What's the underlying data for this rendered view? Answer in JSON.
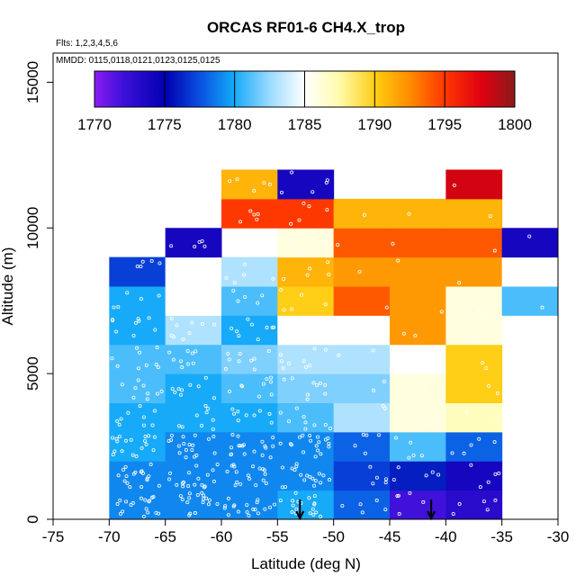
{
  "chart_data": {
    "type": "heatmap",
    "title": "ORCAS RF01-6 CH4.X_trop",
    "subtitle_flights": "Flts: 1,2,3,4,5,6",
    "subtitle_dates": "MMDD: 0115,0118,0121,0123,0125,0125",
    "xlabel": "Latitude (deg N)",
    "ylabel": "Altitude (m)",
    "xlim": [
      -75,
      -30
    ],
    "ylim": [
      0,
      16000
    ],
    "xticks": [
      -75,
      -70,
      -65,
      -60,
      -55,
      -50,
      -45,
      -40,
      -35,
      -30
    ],
    "xtick_labels": [
      "-75",
      "-70",
      "-65",
      "-60",
      "-55",
      "-50",
      "-45",
      "-40",
      "-35",
      "-30"
    ],
    "yticks": [
      0,
      5000,
      10000,
      15000
    ],
    "ytick_labels": [
      "0",
      "5000",
      "10000",
      "15000"
    ],
    "colorbar": {
      "min": 1770,
      "max": 1800,
      "ticks": [
        1770,
        1775,
        1780,
        1785,
        1790,
        1795,
        1800
      ],
      "tick_labels": [
        "1770",
        "1775",
        "1780",
        "1785",
        "1790",
        "1795",
        "1800"
      ]
    },
    "x_bin_edges": [
      -70,
      -65,
      -60,
      -55,
      -50,
      -45,
      -40,
      -35,
      -30
    ],
    "y_bin_edges": [
      0,
      1000,
      2000,
      3000,
      4000,
      5000,
      6000,
      7000,
      8000,
      9000,
      10000,
      11000,
      12000
    ],
    "cells": [
      [
        1779,
        1779,
        1779,
        1780,
        1778,
        1772,
        1773,
        null
      ],
      [
        1779,
        1779,
        1779,
        1779,
        1777,
        1776,
        1774,
        null
      ],
      [
        1780,
        1779,
        1779,
        1779,
        1778,
        1781,
        1778,
        null
      ],
      [
        1780,
        1780,
        1780,
        1781,
        1783,
        1786,
        1787,
        null
      ],
      [
        1781,
        1780,
        1781,
        1782,
        1782,
        1786,
        1790,
        null
      ],
      [
        1781,
        1781,
        1782,
        1783,
        1783,
        1785,
        1790,
        null
      ],
      [
        1780,
        1783,
        1780,
        1785,
        1785,
        1792,
        1786,
        null
      ],
      [
        1780,
        1785,
        1781,
        1790,
        1794,
        1792,
        1786,
        1781
      ],
      [
        1777,
        1785,
        1783,
        1791,
        1792,
        1792,
        1792,
        1785
      ],
      [
        null,
        1774,
        null,
        1786,
        1794,
        1794,
        1794,
        1774
      ],
      [
        null,
        null,
        1795,
        1795,
        1791,
        1791,
        1791,
        null
      ],
      [
        null,
        null,
        1791,
        1774,
        null,
        null,
        1798,
        null
      ]
    ],
    "arrows_at_latitude": [
      -53,
      -41.3
    ],
    "sample_points": "white circle markers at measurement locations"
  }
}
